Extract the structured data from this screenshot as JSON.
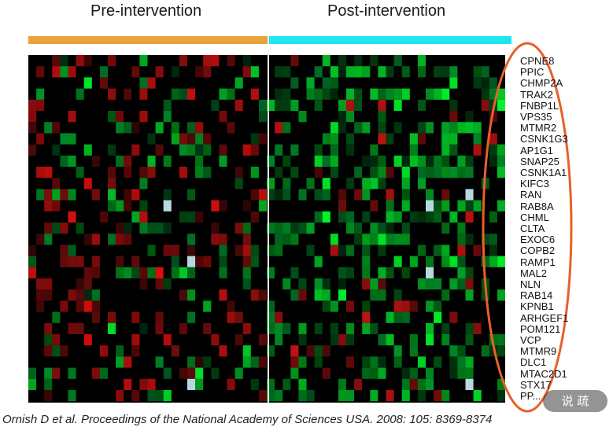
{
  "chart_data": {
    "type": "heatmap",
    "groups": [
      {
        "label": "Pre-intervention",
        "color": "#e8a23a"
      },
      {
        "label": "Post-intervention",
        "color": "#1ee6ee"
      }
    ],
    "genes": [
      "CPNE8",
      "PPIC",
      "CHMP2A",
      "TRAK2",
      "FNBP1L",
      "VPS35",
      "MTMR2",
      "CSNK1G3",
      "AP1G1",
      "SNAP25",
      "CSNK1A1",
      "KIFC3",
      "RAN",
      "RAB8A",
      "CHML",
      "CLTA",
      "EXOC6",
      "COPB2",
      "RAMP1",
      "MAL2",
      "NLN",
      "RAB14",
      "KPNB1",
      "ARHGEF1",
      "POM121",
      "VCP",
      "MTMR9",
      "DLC1",
      "MTAC2D1",
      "STX17",
      "PP..."
    ],
    "colors": {
      "up": "#00e040",
      "down": "#e01010",
      "neutral": "#000000",
      "missing": "#b8d8e0",
      "highlight": "#e8602a"
    }
  },
  "watermark": "说 疏",
  "citation": "Ornish D et al. Proceedings of the National Academy of Sciences USA. 2008: 105: 8369-8374"
}
